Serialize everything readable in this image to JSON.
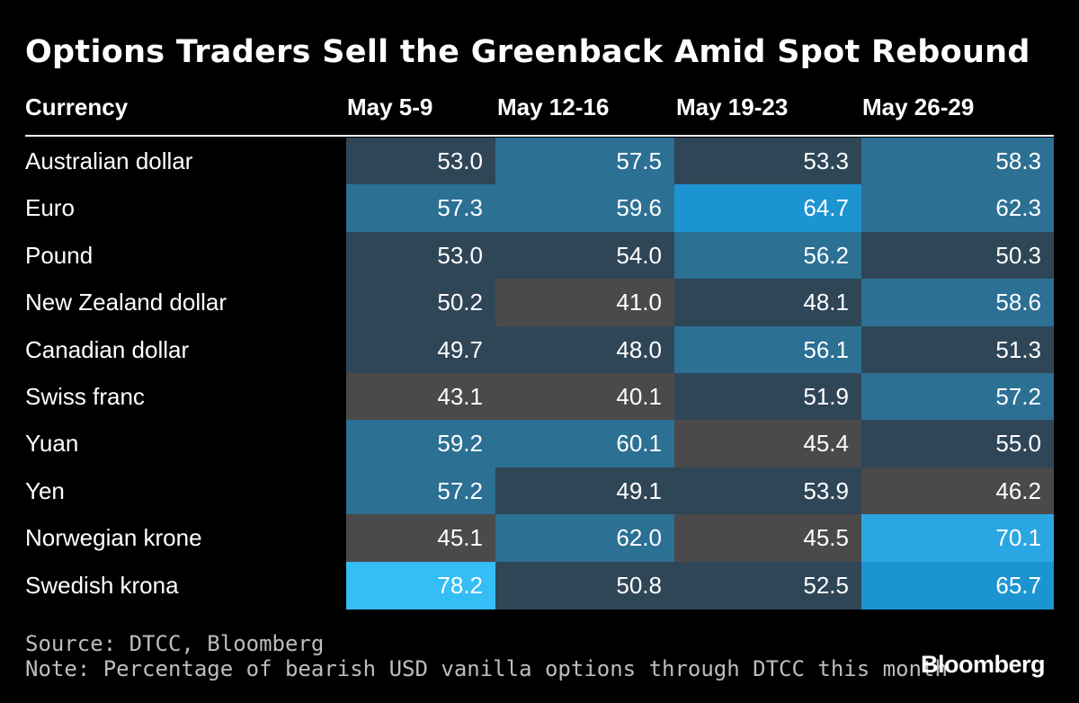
{
  "title": "Options Traders Sell the Greenback Amid Spot Rebound",
  "source": "Source: DTCC, Bloomberg",
  "note": "Note: Percentage of bearish USD vanilla options through DTCC this month",
  "brand": "Bloomberg",
  "chart_data": {
    "type": "table",
    "row_header": "Currency",
    "columns": [
      "May 5-9",
      "May 12-16",
      "May 19-23",
      "May 26-29"
    ],
    "rows": [
      {
        "name": "Australian dollar",
        "values": [
          53.0,
          57.5,
          53.3,
          58.3
        ]
      },
      {
        "name": "Euro",
        "values": [
          57.3,
          59.6,
          64.7,
          62.3
        ]
      },
      {
        "name": "Pound",
        "values": [
          53.0,
          54.0,
          56.2,
          50.3
        ]
      },
      {
        "name": "New Zealand dollar",
        "values": [
          50.2,
          41.0,
          48.1,
          58.6
        ]
      },
      {
        "name": "Canadian dollar",
        "values": [
          49.7,
          48.0,
          56.1,
          51.3
        ]
      },
      {
        "name": "Swiss franc",
        "values": [
          43.1,
          40.1,
          51.9,
          57.2
        ]
      },
      {
        "name": "Yuan",
        "values": [
          59.2,
          60.1,
          45.4,
          55.0
        ]
      },
      {
        "name": "Yen",
        "values": [
          57.2,
          49.1,
          53.9,
          46.2
        ]
      },
      {
        "name": "Norwegian krone",
        "values": [
          45.1,
          62.0,
          45.5,
          70.1
        ]
      },
      {
        "name": "Swedish krona",
        "values": [
          78.2,
          50.8,
          52.5,
          65.7
        ]
      }
    ],
    "color_scale": [
      {
        "max": 47,
        "color": "#4a4a4a"
      },
      {
        "max": 55.5,
        "color": "#2f4657"
      },
      {
        "max": 63,
        "color": "#2c7094"
      },
      {
        "max": 69,
        "color": "#1d94d2"
      },
      {
        "max": 999,
        "color": "#2aa7e3"
      }
    ],
    "highlight_color": "#35bdf5"
  }
}
